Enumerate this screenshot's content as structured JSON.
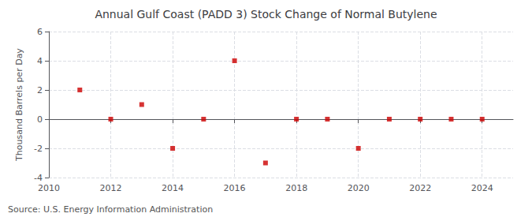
{
  "chart_data": {
    "type": "scatter",
    "title": "Annual Gulf Coast (PADD 3) Stock Change of Normal Butylene",
    "ylabel": "Thousand Barrels per Day",
    "annotations": [
      "Source: U.S. Energy Information Administration"
    ],
    "x": [
      2011,
      2012,
      2013,
      2014,
      2015,
      2016,
      2017,
      2018,
      2019,
      2020,
      2021,
      2022,
      2023,
      2024
    ],
    "values": [
      2,
      0,
      1,
      -2,
      0,
      4,
      -3,
      0,
      0,
      -2,
      0,
      0,
      0,
      0
    ],
    "color": "#cc0000",
    "marker": "square",
    "xlim": [
      2010,
      2025
    ],
    "ylim": [
      -4,
      6
    ],
    "xticks": [
      2010,
      2012,
      2014,
      2016,
      2018,
      2020,
      2022,
      2024
    ],
    "yticks": [
      -4,
      -2,
      0,
      2,
      4,
      6
    ],
    "grid": true
  }
}
